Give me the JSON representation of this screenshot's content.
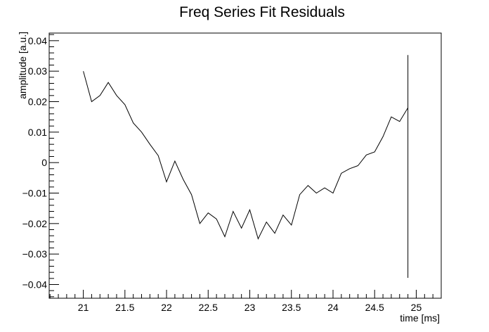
{
  "chart_data": {
    "type": "line",
    "title": "Freq Series Fit Residuals",
    "xlabel": "time [ms]",
    "ylabel": "amplitude [a.u.]",
    "xlim": [
      20.59,
      25.3
    ],
    "ylim": [
      -0.0445,
      0.0425
    ],
    "x_ticks": [
      21,
      21.5,
      22,
      22.5,
      23,
      23.5,
      24,
      24.5,
      25
    ],
    "x_tick_labels": [
      "21",
      "21.5",
      "22",
      "22.5",
      "23",
      "23.5",
      "24",
      "24.5",
      "25"
    ],
    "y_ticks": [
      -0.04,
      -0.03,
      -0.02,
      -0.01,
      0,
      0.01,
      0.02,
      0.03,
      0.04
    ],
    "y_tick_labels": [
      "−0.04",
      "−0.03",
      "−0.02",
      "−0.01",
      "0",
      "0.01",
      "0.02",
      "0.03",
      "0.04"
    ],
    "grid": false,
    "legend": "none",
    "line_color": "#000000",
    "series": [
      {
        "x": [
          21.0,
          21.1,
          21.2,
          21.3,
          21.4,
          21.5,
          21.6,
          21.7,
          21.8,
          21.9,
          22.0,
          22.1,
          22.2,
          22.3,
          22.4,
          22.5,
          22.6,
          22.7,
          22.8,
          22.9,
          23.0,
          23.1,
          23.2,
          23.3,
          23.4,
          23.5,
          23.6,
          23.7,
          23.8,
          23.9,
          24.0,
          24.1,
          24.2,
          24.3,
          24.4,
          24.5,
          24.6,
          24.7,
          24.8,
          24.9,
          24.9,
          24.9
        ],
        "y": [
          0.03,
          0.02,
          0.022,
          0.0263,
          0.022,
          0.019,
          0.013,
          0.01,
          0.006,
          0.0023,
          -0.0063,
          0.0005,
          -0.0055,
          -0.0105,
          -0.02,
          -0.0165,
          -0.0185,
          -0.0243,
          -0.016,
          -0.0215,
          -0.0155,
          -0.025,
          -0.0195,
          -0.0232,
          -0.0172,
          -0.0205,
          -0.0105,
          -0.0075,
          -0.01,
          -0.0083,
          -0.01,
          -0.0035,
          -0.002,
          -0.001,
          0.0025,
          0.0035,
          0.0085,
          0.015,
          0.0135,
          0.018,
          0.0353,
          -0.0378
        ]
      }
    ]
  }
}
